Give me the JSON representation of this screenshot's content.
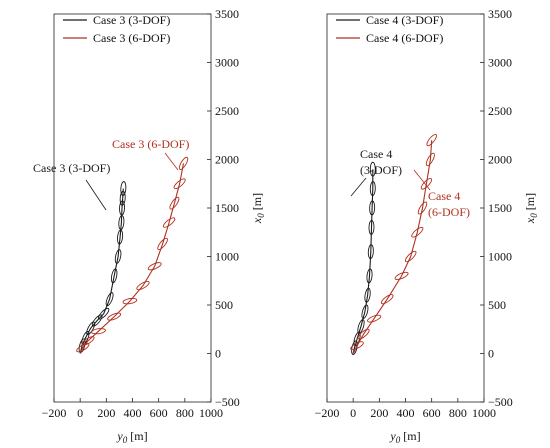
{
  "chart_data": [
    {
      "type": "line",
      "panel": "left",
      "title": "",
      "xlabel": "y",
      "xlabel_subscript": "0",
      "xlabel_unit": " [m]",
      "ylabel": "x",
      "ylabel_subscript": "0",
      "ylabel_unit": " [m]",
      "xlim": [
        -200,
        1000
      ],
      "ylim": [
        -500,
        3500
      ],
      "xticks": [
        "−200",
        "0",
        "200",
        "400",
        "600",
        "800",
        "1000"
      ],
      "yticks": [
        "−500",
        "0",
        "500",
        "1000",
        "1500",
        "2000",
        "2500",
        "3000",
        "3500"
      ],
      "legend_position": "top-left",
      "grid": false,
      "series": [
        {
          "name": "Case 3 (3-DOF)",
          "color": "#1a1a1a",
          "x": [
            0,
            15,
            40,
            80,
            130,
            180,
            225,
            260,
            290,
            305,
            315,
            320,
            325,
            330
          ],
          "y": [
            0,
            80,
            160,
            260,
            340,
            410,
            560,
            800,
            1000,
            1200,
            1350,
            1500,
            1600,
            1700
          ]
        },
        {
          "name": "Case 3 (6-DOF)",
          "color": "#b03020",
          "x": [
            0,
            20,
            60,
            140,
            260,
            380,
            480,
            570,
            630,
            680,
            720,
            760,
            790
          ],
          "y": [
            0,
            60,
            130,
            230,
            380,
            540,
            700,
            900,
            1130,
            1350,
            1550,
            1750,
            1960
          ]
        }
      ],
      "annotations": [
        {
          "text": "Case 3 (3-DOF)",
          "color": "#1a1a1a"
        },
        {
          "text": "Case 3 (6-DOF)",
          "color": "#b03020"
        }
      ]
    },
    {
      "type": "line",
      "panel": "right",
      "title": "",
      "xlabel": "y",
      "xlabel_subscript": "0",
      "xlabel_unit": " [m]",
      "ylabel": "x",
      "ylabel_subscript": "0",
      "ylabel_unit": " [m]",
      "xlim": [
        -200,
        1000
      ],
      "ylim": [
        -500,
        3500
      ],
      "xticks": [
        "−200",
        "0",
        "200",
        "400",
        "600",
        "800",
        "1000"
      ],
      "yticks": [
        "−500",
        "0",
        "500",
        "1000",
        "1500",
        "2000",
        "2500",
        "3000",
        "3500"
      ],
      "legend_position": "top-left",
      "grid": false,
      "series": [
        {
          "name": "Case 4 (3-DOF)",
          "color": "#1a1a1a",
          "x": [
            0,
            10,
            30,
            60,
            90,
            110,
            125,
            135,
            140,
            145,
            150,
            150
          ],
          "y": [
            0,
            60,
            150,
            280,
            430,
            600,
            800,
            1050,
            1300,
            1500,
            1700,
            1900
          ]
        },
        {
          "name": "Case 4 (6-DOF)",
          "color": "#b03020",
          "x": [
            0,
            30,
            80,
            160,
            260,
            370,
            440,
            490,
            530,
            560,
            590,
            600
          ],
          "y": [
            0,
            80,
            200,
            360,
            560,
            800,
            1000,
            1250,
            1500,
            1750,
            2000,
            2200
          ]
        }
      ],
      "annotations": [
        {
          "text": "Case 4",
          "color": "#1a1a1a"
        },
        {
          "text": "(3-DOF)",
          "color": "#1a1a1a"
        },
        {
          "text": "Case 4",
          "color": "#b03020"
        },
        {
          "text": "(6-DOF)",
          "color": "#b03020"
        }
      ]
    }
  ]
}
